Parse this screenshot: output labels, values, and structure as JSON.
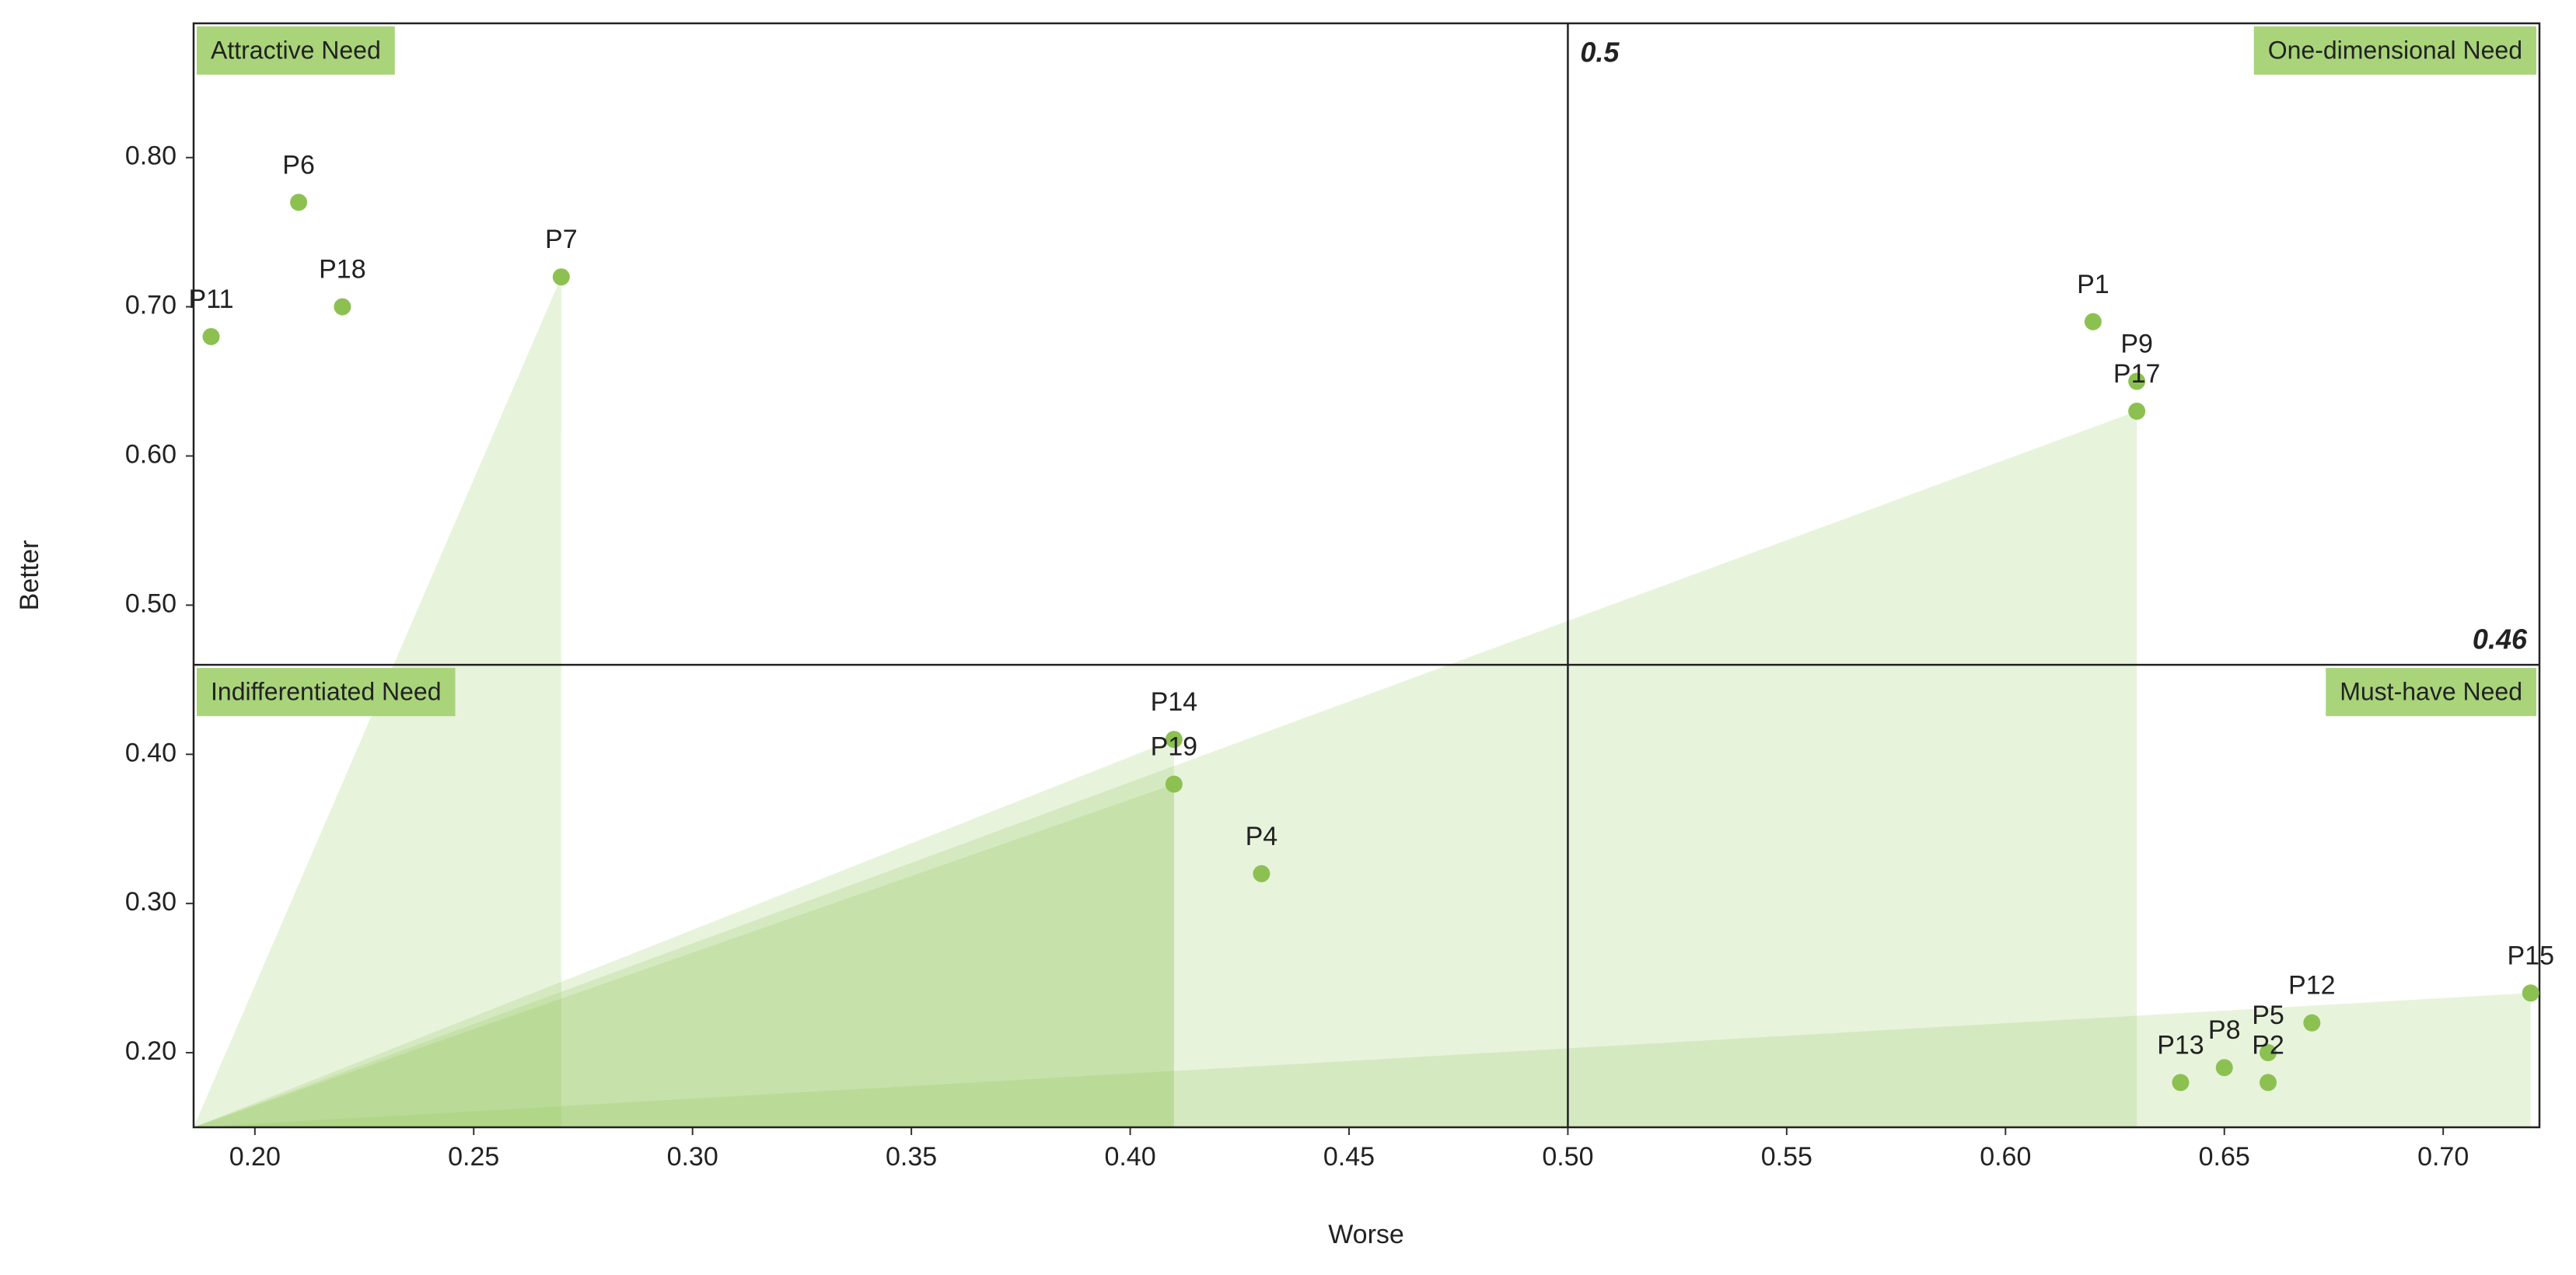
{
  "chart_data": {
    "type": "scatter",
    "x_label": "Worse",
    "y_label": "Better",
    "color": "#8cc152",
    "shade_color": "#8cc152",
    "label_color": "#a9d47a",
    "xlim": [
      0.186,
      0.722
    ],
    "ylim": [
      0.15,
      0.89
    ],
    "xticks": [
      {
        "value": 0.2,
        "label": "0.20"
      },
      {
        "value": 0.25,
        "label": "0.25"
      },
      {
        "value": 0.3,
        "label": "0.30"
      },
      {
        "value": 0.35,
        "label": "0.35"
      },
      {
        "value": 0.4,
        "label": "0.40"
      },
      {
        "value": 0.45,
        "label": "0.45"
      },
      {
        "value": 0.5,
        "label": "0.50"
      },
      {
        "value": 0.55,
        "label": "0.55"
      },
      {
        "value": 0.6,
        "label": "0.60"
      },
      {
        "value": 0.65,
        "label": "0.65"
      },
      {
        "value": 0.7,
        "label": "0.70"
      }
    ],
    "yticks": [
      {
        "value": 0.2,
        "label": "0.20"
      },
      {
        "value": 0.3,
        "label": "0.30"
      },
      {
        "value": 0.4,
        "label": "0.40"
      },
      {
        "value": 0.5,
        "label": "0.50"
      },
      {
        "value": 0.6,
        "label": "0.60"
      },
      {
        "value": 0.7,
        "label": "0.70"
      },
      {
        "value": 0.8,
        "label": "0.80"
      }
    ],
    "x_divider": 0.5,
    "y_divider": 0.46,
    "quadrants": {
      "top_left": "Attractive Need",
      "top_right": "One-dimensional Need",
      "bottom_left": "Indifferentiated Need",
      "bottom_right": "Must-have Need"
    },
    "points": [
      {
        "label": "P1",
        "x": 0.62,
        "y": 0.69
      },
      {
        "label": "P6",
        "x": 0.21,
        "y": 0.77
      },
      {
        "label": "P18",
        "x": 0.22,
        "y": 0.7
      },
      {
        "label": "P7",
        "x": 0.27,
        "y": 0.72,
        "shaded": true
      },
      {
        "label": "P11",
        "x": 0.19,
        "y": 0.68
      },
      {
        "label": "P9",
        "x": 0.63,
        "y": 0.65
      },
      {
        "label": "P17",
        "x": 0.63,
        "y": 0.63,
        "shaded": true
      },
      {
        "label": "P14",
        "x": 0.41,
        "y": 0.41,
        "shaded": true
      },
      {
        "label": "P19",
        "x": 0.41,
        "y": 0.38,
        "shaded": true
      },
      {
        "label": "P4",
        "x": 0.43,
        "y": 0.32
      },
      {
        "label": "P15",
        "x": 0.72,
        "y": 0.24,
        "shaded": true
      },
      {
        "label": "P12",
        "x": 0.67,
        "y": 0.22
      },
      {
        "label": "P5",
        "x": 0.66,
        "y": 0.2
      },
      {
        "label": "P8",
        "x": 0.65,
        "y": 0.19
      },
      {
        "label": "P2",
        "x": 0.66,
        "y": 0.18
      },
      {
        "label": "P13",
        "x": 0.64,
        "y": 0.18
      }
    ]
  }
}
